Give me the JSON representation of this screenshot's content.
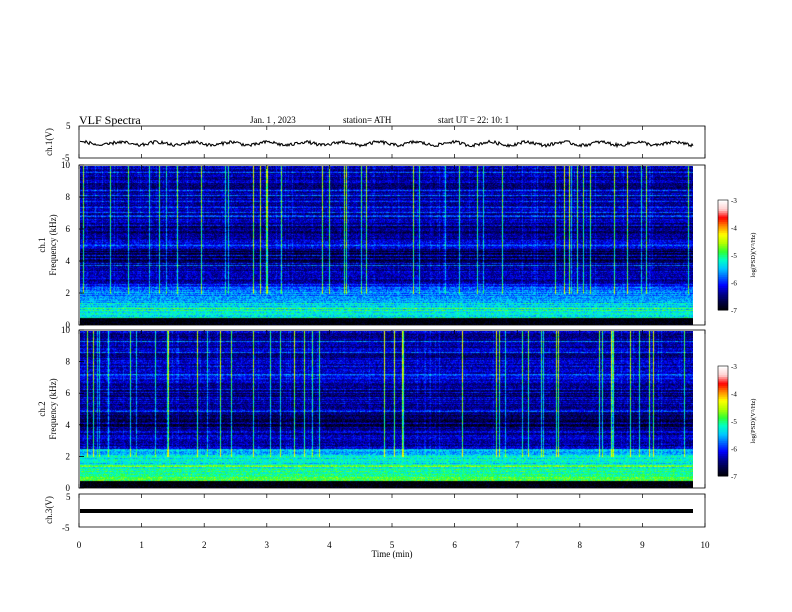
{
  "header": {
    "title": "VLF  Spectra",
    "date": "Jan.  1  , 2023",
    "station": "station= ATH",
    "start": "start  UT  =    22: 10: 1"
  },
  "colors": {
    "background": "#ffffff",
    "axis": "#000000",
    "colormap": [
      "#000000",
      "#000040",
      "#00008c",
      "#0000ff",
      "#0064ff",
      "#00c8ff",
      "#00ffc8",
      "#32ff32",
      "#b4ff00",
      "#ffff00",
      "#ff8c00",
      "#ff0000",
      "#ffd2d2",
      "#ffffff"
    ]
  },
  "chart_data": [
    {
      "type": "line",
      "name": "ch1-timeseries",
      "ylabel": "ch.1(V)",
      "y_ticks": [
        "5",
        "-5"
      ],
      "ylim": [
        -5,
        5
      ],
      "xlim": [
        0,
        10
      ],
      "approx_level": -0.5
    },
    {
      "type": "heatmap",
      "name": "ch1-spectrogram",
      "ylabel": "ch.1\nFrequency (kHz)",
      "ylabel_lines": [
        "ch.1",
        "Frequency (kHz)"
      ],
      "y_ticks": [
        "0",
        "2",
        "4",
        "6",
        "8",
        "10"
      ],
      "ylim": [
        0,
        10
      ],
      "xlim": [
        0,
        9.8
      ],
      "colorbar": {
        "label": "log(PSD)(V²/Hz)",
        "ticks": [
          "-3",
          "-4",
          "-5",
          "-6",
          "-7"
        ],
        "range": [
          -7,
          -3
        ]
      }
    },
    {
      "type": "heatmap",
      "name": "ch2-spectrogram",
      "ylabel": "ch.2\nFrequency (kHz)",
      "ylabel_lines": [
        "ch.2",
        "Frequency (kHz)"
      ],
      "y_ticks": [
        "0",
        "2",
        "4",
        "6",
        "8",
        "10"
      ],
      "ylim": [
        0,
        10
      ],
      "xlim": [
        0,
        9.8
      ],
      "colorbar": {
        "label": "log(PSD)(V²/Hz)",
        "ticks": [
          "-3",
          "-4",
          "-5",
          "-6",
          "-7"
        ],
        "range": [
          -7,
          -3
        ]
      }
    },
    {
      "type": "line",
      "name": "ch3-timeseries",
      "ylabel": "ch.3(V)",
      "y_ticks": [
        "5",
        "-5"
      ],
      "ylim": [
        -5,
        5
      ],
      "xlim": [
        0,
        10
      ],
      "approx_level": -1.5,
      "xlabel": "Time  (min)",
      "x_ticks": [
        "0",
        "1",
        "2",
        "3",
        "4",
        "5",
        "6",
        "7",
        "8",
        "9",
        "10"
      ]
    }
  ]
}
